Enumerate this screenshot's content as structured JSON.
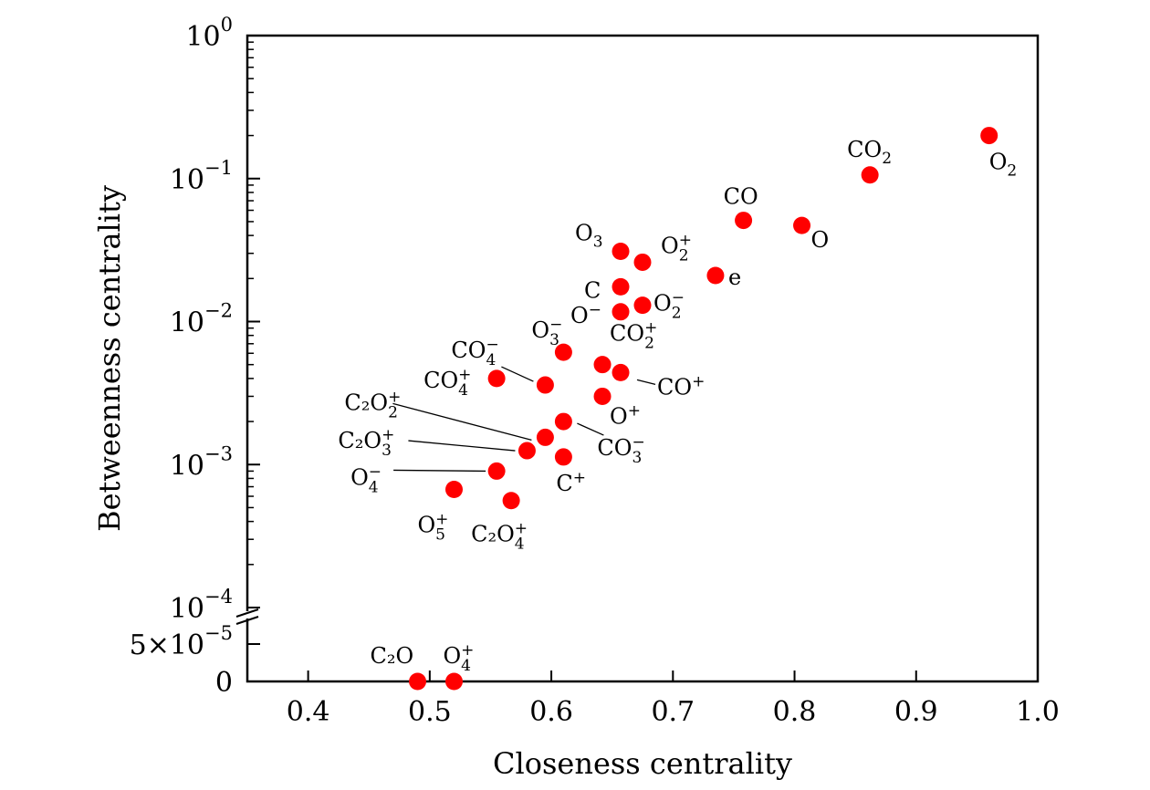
{
  "chart_data": {
    "type": "scatter",
    "xlabel": "Closeness centrality",
    "ylabel": "Betweenness centrality",
    "xlim": [
      0.35,
      1.0
    ],
    "x_ticks": [
      {
        "value": 0.4,
        "label": "0.4"
      },
      {
        "value": 0.5,
        "label": "0.5"
      },
      {
        "value": 0.6,
        "label": "0.6"
      },
      {
        "value": 0.7,
        "label": "0.7"
      },
      {
        "value": 0.8,
        "label": "0.8"
      },
      {
        "value": 0.9,
        "label": "0.9"
      },
      {
        "value": 1.0,
        "label": "1.0"
      }
    ],
    "y_scale": "log with axis break (0 and 5×10⁻⁵ shown linearly below the break)",
    "ylim_log": [
      0.0001,
      1
    ],
    "y_ticks": [
      {
        "value": 1,
        "base": "10",
        "exp": "0"
      },
      {
        "value": 0.1,
        "base": "10",
        "exp": "−1"
      },
      {
        "value": 0.01,
        "base": "10",
        "exp": "−2"
      },
      {
        "value": 0.001,
        "base": "10",
        "exp": "−3"
      },
      {
        "value": 0.0001,
        "base": "10",
        "exp": "−4"
      }
    ],
    "y_ticks_lower": [
      {
        "value": 5e-05,
        "base": "5×10",
        "exp": "−5"
      },
      {
        "value": 0,
        "base": "0",
        "exp": ""
      }
    ],
    "marker_color": "#ff0000",
    "grid": false,
    "points": [
      {
        "x": 0.96,
        "y": 0.2,
        "label": "O",
        "sub": "2",
        "sup": ""
      },
      {
        "x": 0.862,
        "y": 0.106,
        "label": "CO",
        "sub": "2",
        "sup": ""
      },
      {
        "x": 0.806,
        "y": 0.047,
        "label": "O",
        "sub": "",
        "sup": ""
      },
      {
        "x": 0.758,
        "y": 0.051,
        "label": "CO",
        "sub": "",
        "sup": ""
      },
      {
        "x": 0.735,
        "y": 0.021,
        "label": "e",
        "sub": "",
        "sup": ""
      },
      {
        "x": 0.657,
        "y": 0.031,
        "label": "O",
        "sub": "3",
        "sup": ""
      },
      {
        "x": 0.675,
        "y": 0.026,
        "label": "O",
        "sub": "2",
        "sup": "+"
      },
      {
        "x": 0.657,
        "y": 0.0175,
        "label": "C",
        "sub": "",
        "sup": ""
      },
      {
        "x": 0.675,
        "y": 0.013,
        "label": "O",
        "sub": "2",
        "sup": "−"
      },
      {
        "x": 0.657,
        "y": 0.0117,
        "label": "O",
        "sub": "",
        "sup": "−"
      },
      {
        "x": 0.61,
        "y": 0.0061,
        "label": "O",
        "sub": "3",
        "sup": "−"
      },
      {
        "x": 0.642,
        "y": 0.005,
        "label": "CO",
        "sub": "2",
        "sup": "+"
      },
      {
        "x": 0.657,
        "y": 0.0044,
        "label": "CO",
        "sub": "",
        "sup": "+"
      },
      {
        "x": 0.555,
        "y": 0.004,
        "label": "CO",
        "sub": "4",
        "sup": "+"
      },
      {
        "x": 0.595,
        "y": 0.0036,
        "label": "CO",
        "sub": "4",
        "sup": "−"
      },
      {
        "x": 0.642,
        "y": 0.003,
        "label": "O",
        "sub": "",
        "sup": "+"
      },
      {
        "x": 0.61,
        "y": 0.002,
        "label": "CO",
        "sub": "3",
        "sup": "−"
      },
      {
        "x": 0.595,
        "y": 0.00155,
        "label": "C₂O",
        "sub": "2",
        "sup": "+"
      },
      {
        "x": 0.58,
        "y": 0.00125,
        "label": "C₂O",
        "sub": "3",
        "sup": "+"
      },
      {
        "x": 0.61,
        "y": 0.00113,
        "label": "C",
        "sub": "",
        "sup": "+"
      },
      {
        "x": 0.555,
        "y": 0.0009,
        "label": "O",
        "sub": "4",
        "sup": "−"
      },
      {
        "x": 0.52,
        "y": 0.00067,
        "label": "O",
        "sub": "5",
        "sup": "+"
      },
      {
        "x": 0.567,
        "y": 0.00056,
        "label": "C₂O",
        "sub": "4",
        "sup": "+"
      },
      {
        "x": 0.49,
        "y": 0,
        "label": "C₂O",
        "sub": "",
        "sup": ""
      },
      {
        "x": 0.52,
        "y": 0,
        "label": "O",
        "sub": "4",
        "sup": "+"
      }
    ]
  }
}
